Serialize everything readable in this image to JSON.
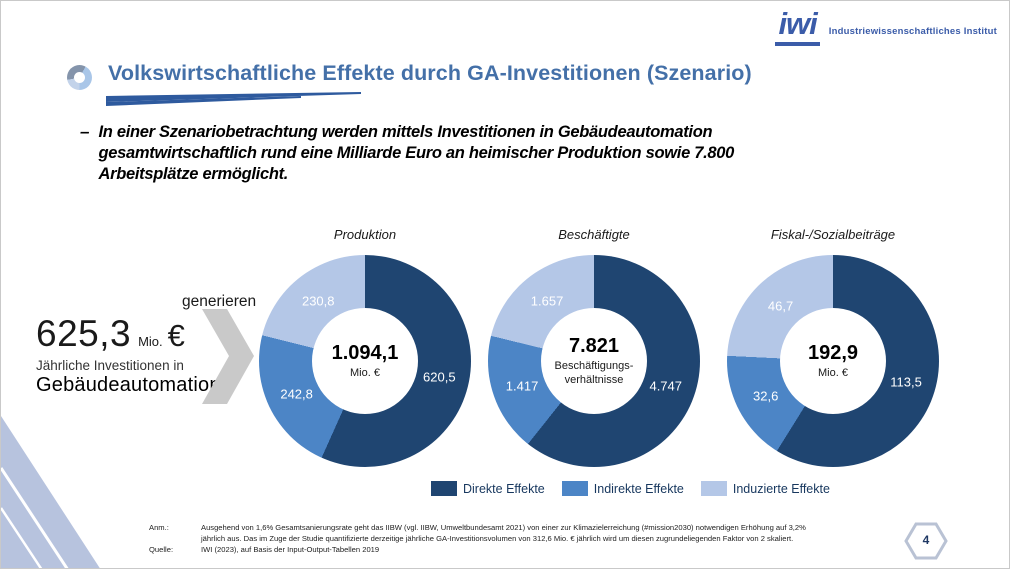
{
  "slide": {
    "title": "Volkswirtschaftliche Effekte durch GA-Investitionen (Szenario)",
    "page_number": "4"
  },
  "logo": {
    "mark": "iwi",
    "name": "Industriewissenschaftliches Institut"
  },
  "bullet": {
    "dash": "–",
    "text": "In einer Szenariobetrachtung werden mittels Investitionen in Gebäudeautomation gesamtwirtschaftlich rund eine Milliarde Euro an heimischer Produktion sowie 7.800 Arbeitsplätze ermöglicht."
  },
  "investment": {
    "value": "625,3",
    "unit": "Mio.",
    "currency": "€",
    "desc_line1": "Jährliche Investitionen in",
    "desc_line2": "Gebäudeautomation",
    "verb": "generieren"
  },
  "chart_data": [
    {
      "type": "donut",
      "title": "Produktion",
      "center_value": "1.094,1",
      "center_label": "Mio. €",
      "segments": [
        {
          "name": "Direkte Effekte",
          "value": 620.5,
          "label": "620,5"
        },
        {
          "name": "Indirekte Effekte",
          "value": 242.8,
          "label": "242,8"
        },
        {
          "name": "Induzierte Effekte",
          "value": 230.8,
          "label": "230,8"
        }
      ]
    },
    {
      "type": "donut",
      "title": "Beschäftigte",
      "center_value": "7.821",
      "center_label": "Beschäftigungs-\nverhältnisse",
      "segments": [
        {
          "name": "Direkte Effekte",
          "value": 4747,
          "label": "4.747"
        },
        {
          "name": "Indirekte Effekte",
          "value": 1417,
          "label": "1.417"
        },
        {
          "name": "Induzierte Effekte",
          "value": 1657,
          "label": "1.657"
        }
      ]
    },
    {
      "type": "donut",
      "title": "Fiskal-/Sozialbeiträge",
      "center_value": "192,9",
      "center_label": "Mio. €",
      "segments": [
        {
          "name": "Direkte Effekte",
          "value": 113.5,
          "label": "113,5"
        },
        {
          "name": "Indirekte Effekte",
          "value": 32.6,
          "label": "32,6"
        },
        {
          "name": "Induzierte Effekte",
          "value": 46.7,
          "label": "46,7"
        }
      ]
    }
  ],
  "legend": {
    "items": [
      {
        "label": "Direkte Effekte",
        "color": "#1F4571"
      },
      {
        "label": "Indirekte Effekte",
        "color": "#4C85C6"
      },
      {
        "label": "Induzierte Effekte",
        "color": "#B4C7E7"
      }
    ]
  },
  "footnotes": [
    {
      "label": "Anm.:",
      "text": "Ausgehend von 1,6% Gesamtsanierungsrate geht das IIBW (vgl. IIBW, Umweltbundesamt 2021) von einer zur Klimazielerreichung (#mission2030) notwendigen Erhöhung auf 3,2% jährlich aus. Das im Zuge der Studie quantifizierte derzeitige jährliche GA-Investitionsvolumen von 312,6 Mio. € jährlich wird um diesen zugrundeliegenden Faktor von 2 skaliert."
    },
    {
      "label": "Quelle:",
      "text": "IWI (2023), auf Basis der Input-Output-Tabellen 2019"
    }
  ]
}
